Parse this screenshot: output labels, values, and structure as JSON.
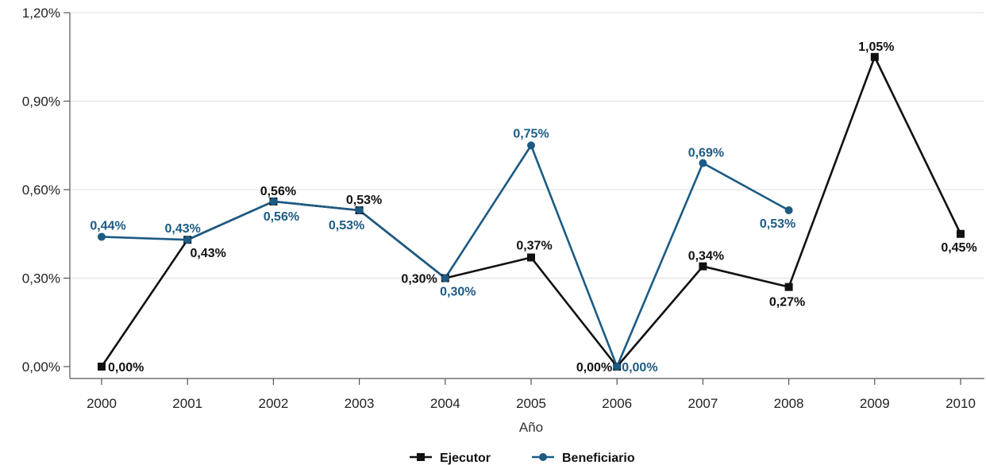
{
  "chart_data": {
    "type": "line",
    "categories": [
      "2000",
      "2001",
      "2002",
      "2003",
      "2004",
      "2005",
      "2006",
      "2007",
      "2008",
      "2009",
      "2010"
    ],
    "xlabel": "Año",
    "ylabel": "",
    "ylim": [
      0,
      1.2
    ],
    "yticks": [
      "0,00%",
      "0,30%",
      "0,60%",
      "0,90%",
      "1,20%"
    ],
    "ytick_values": [
      0,
      0.3,
      0.6,
      0.9,
      1.2
    ],
    "grid": "horizontal",
    "legend": "bottom-center",
    "series": [
      {
        "name": "Ejecutor",
        "color": "#111111",
        "marker": "square",
        "values": [
          0.0,
          0.43,
          0.56,
          0.53,
          0.3,
          0.37,
          0.0,
          0.34,
          0.27,
          1.05,
          0.45
        ],
        "labels": [
          "0,00%",
          "0,43%",
          "0,56%",
          "0,53%",
          "0,30%",
          "0,37%",
          "0,00%",
          "0,34%",
          "0,27%",
          "1,05%",
          "0,45%"
        ]
      },
      {
        "name": "Beneficiario",
        "color": "#1c5b84",
        "marker": "circle",
        "values": [
          0.44,
          0.43,
          0.56,
          0.53,
          0.3,
          0.75,
          0.0,
          0.69,
          0.53,
          null,
          null
        ],
        "labels": [
          "0,44%",
          "0,43%",
          "0,56%",
          "0,53%",
          "0,30%",
          "0,75%",
          "0,00%",
          "0,69%",
          "0,53%",
          null,
          null
        ]
      }
    ]
  }
}
